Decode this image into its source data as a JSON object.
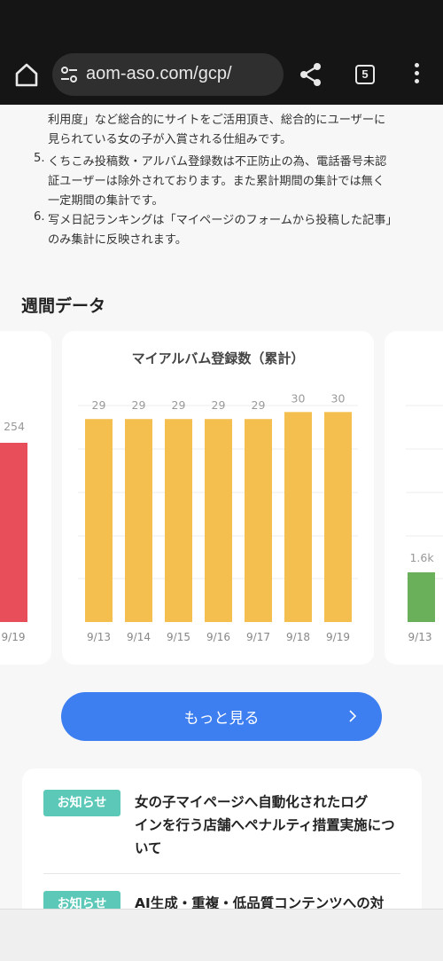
{
  "browser": {
    "url": "aom-aso.com/gcp/",
    "tab_count": "5",
    "icons": [
      "home-icon",
      "tune-icon",
      "share-icon",
      "tabs-icon",
      "more-vert-icon"
    ]
  },
  "notes": {
    "lines": [
      "利用度」など総合的にサイトをご活用頂き、総合的にユーザーに",
      "見られている女の子が入賞される仕組みです。",
      "くちこみ投稿数・アルバム登録数は不正防止の為、電話番号未認",
      "証ユーザーは除外されております。また累計期間の集計では無く",
      "一定期間の集計です。",
      "写メ日記ランキングは「マイページのフォームから投稿した記事」",
      "のみ集計に反映されます。"
    ],
    "numbers": [
      "5.",
      "6."
    ]
  },
  "section": {
    "title": "週間データ"
  },
  "charts": {
    "left_partial": {
      "value_label": "254",
      "date_label": "9/19",
      "color": "#e84e5a"
    },
    "right_partial": {
      "value_label": "1.6k",
      "date_label": "9/13",
      "color": "#6aaf5a"
    }
  },
  "chart_data": {
    "type": "bar",
    "title": "マイアルバム登録数（累計）",
    "categories": [
      "9/13",
      "9/14",
      "9/15",
      "9/16",
      "9/17",
      "9/18",
      "9/19"
    ],
    "values": [
      29,
      29,
      29,
      29,
      29,
      30,
      30
    ],
    "color": "#f4bf4f",
    "grid": true
  },
  "more_button": {
    "label": "もっと見る"
  },
  "news": [
    {
      "badge": "お知らせ",
      "title_lines": [
        "女の子マイページへ自動化されたログ",
        "インを行う店舗へペナルティ措置実施につ",
        "いて"
      ]
    },
    {
      "badge": "お知らせ",
      "title_lines": [
        "AI生成・重複・低品質コンテンツへの対"
      ]
    }
  ],
  "colors": {
    "accent": "#3d7ef0",
    "badge": "#5bc8b8",
    "toolbar": "#151515"
  }
}
